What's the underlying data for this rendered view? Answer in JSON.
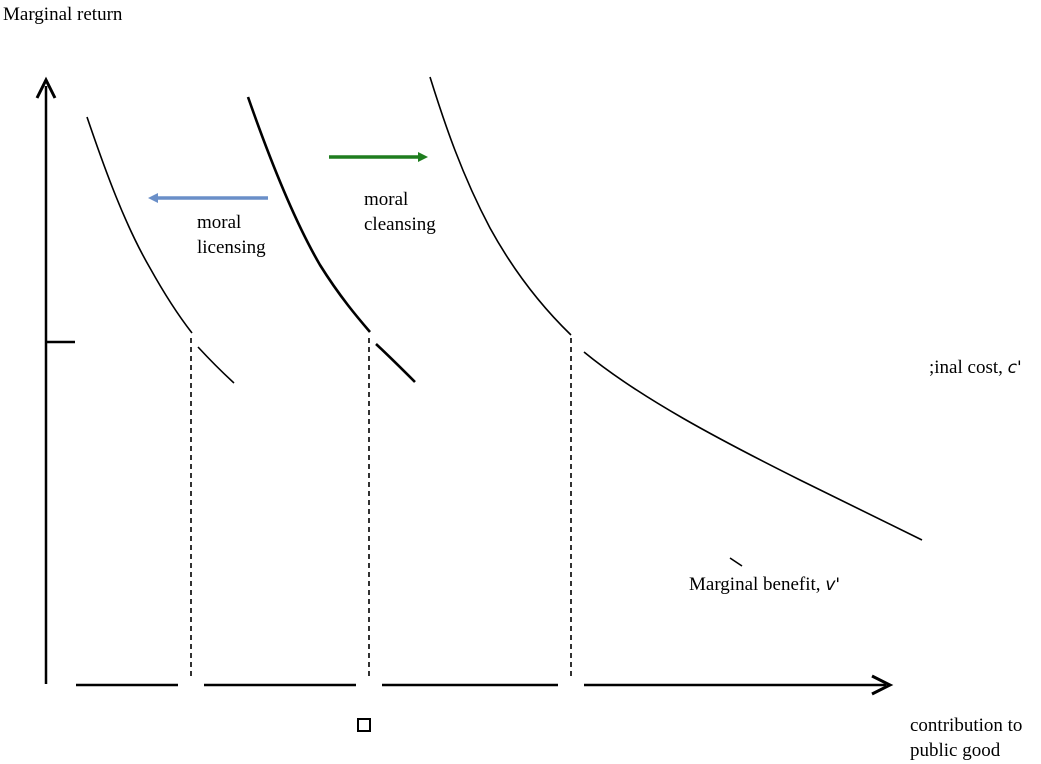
{
  "diagram": {
    "y_axis_label": "Marginal return",
    "x_axis_label_line1": "contribution to",
    "x_axis_label_line2": "public good",
    "cost_label": ";inal cost, ",
    "cost_symbol": "c'",
    "benefit_label": "Marginal benefit, ",
    "benefit_symbol": "v'",
    "licensing_label_line1": "moral",
    "licensing_label_line2": "licensing",
    "cleansing_label_line1": "moral",
    "cleansing_label_line2": "cleansing",
    "colors": {
      "licensing_arrow": "#6a8fc8",
      "cleansing_arrow": "#1e7d1e",
      "lines": "#000000"
    },
    "icons": [
      "up-arrow-icon",
      "right-arrow-icon",
      "left-arrow-icon",
      "square-icon"
    ]
  }
}
